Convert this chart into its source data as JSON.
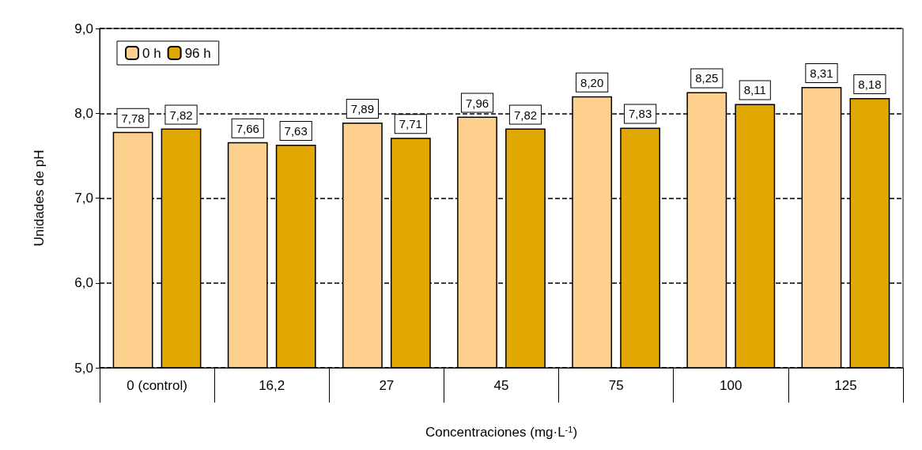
{
  "chart_data": {
    "type": "bar",
    "xlabel": "Concentraciones (mg·L$^{-1}$)",
    "ylabel": "Unidades de pH",
    "categories": [
      "0 (control)",
      "16,2",
      "27",
      "45",
      "75",
      "100",
      "125"
    ],
    "series": [
      {
        "name": "0 h",
        "color": "#fdd08e",
        "values": [
          7.78,
          7.66,
          7.89,
          7.96,
          8.2,
          8.25,
          8.31
        ],
        "value_labels": [
          "7,78",
          "7,66",
          "7,89",
          "7,96",
          "8,20",
          "8,25",
          "8,31"
        ]
      },
      {
        "name": "96 h",
        "color": "#e0a800",
        "values": [
          7.82,
          7.63,
          7.71,
          7.82,
          7.83,
          8.11,
          8.18
        ],
        "value_labels": [
          "7,82",
          "7,63",
          "7,71",
          "7,82",
          "7,83",
          "8,11",
          "8,18"
        ]
      }
    ],
    "ylim": [
      5,
      9
    ],
    "yticks": [
      {
        "value": 5,
        "label": "5,0"
      },
      {
        "value": 6,
        "label": "6,0"
      },
      {
        "value": 7,
        "label": "7,0"
      },
      {
        "value": 8,
        "label": "8,0"
      },
      {
        "value": 9,
        "label": "9,0"
      }
    ],
    "grid": "y",
    "legend": "top left"
  }
}
